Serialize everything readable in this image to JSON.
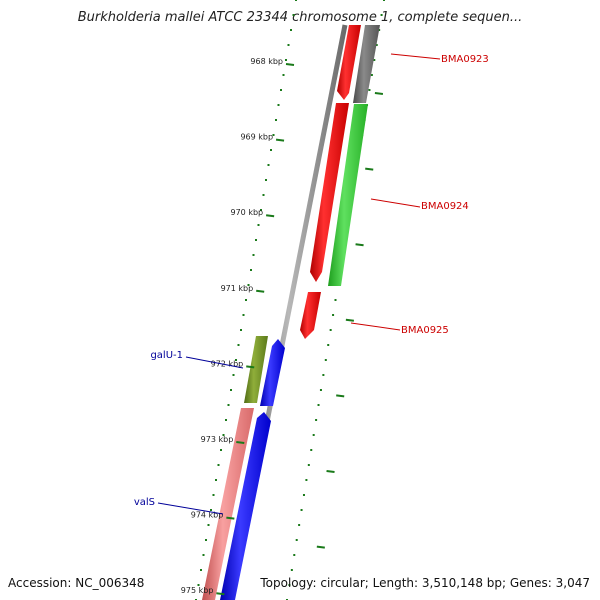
{
  "title": "Burkholderia mallei ATCC 23344 chromosome 1, complete sequen...",
  "accession": "Accession: NC_006348",
  "topology": "Topology: circular; Length: 3,510,148 bp; Genes: 3,047",
  "ticks": [
    {
      "label": "968 kbp"
    },
    {
      "label": "969 kbp"
    },
    {
      "label": "970 kbp"
    },
    {
      "label": "971 kbp"
    },
    {
      "label": "972 kbp"
    },
    {
      "label": "973 kbp"
    },
    {
      "label": "974 kbp"
    },
    {
      "label": "975 kbp"
    }
  ],
  "gene_labels_right": [
    "BMA0923",
    "BMA0924",
    "BMA0925"
  ],
  "gene_labels_left": [
    "galU-1",
    "valS"
  ],
  "colors": {
    "red": "#ff0000",
    "grey": "#6e6e6e",
    "green": "#33cc33",
    "olive": "#6b8e23",
    "blue": "#0000ff",
    "pink": "#f08080",
    "tick": "#1a7a1a",
    "label_right": "#cc0000",
    "label_left": "#000099"
  }
}
